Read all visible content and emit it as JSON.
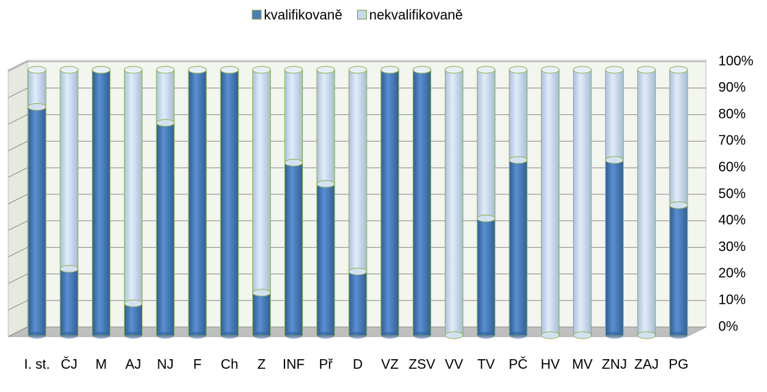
{
  "chart_data": {
    "type": "bar",
    "stacked": true,
    "categories": [
      "I. st.",
      "ČJ",
      "M",
      "AJ",
      "NJ",
      "F",
      "Ch",
      "Z",
      "INF",
      "Př",
      "D",
      "VZ",
      "ZSV",
      "VV",
      "TV",
      "PČ",
      "HV",
      "MV",
      "ZNJ",
      "ZAJ",
      "PG"
    ],
    "series": [
      {
        "name": "kvalifikovaně",
        "color": "#4a7ebb",
        "values": [
          86,
          25,
          100,
          12,
          80,
          100,
          100,
          16,
          65,
          57,
          24,
          100,
          100,
          0,
          44,
          66,
          0,
          0,
          66,
          0,
          49
        ]
      },
      {
        "name": "nekvalifikovaně",
        "color": "#c6d9f1",
        "values": [
          14,
          75,
          0,
          88,
          20,
          0,
          0,
          84,
          35,
          43,
          76,
          0,
          0,
          100,
          56,
          34,
          100,
          100,
          34,
          100,
          51
        ]
      }
    ],
    "ylim": [
      0,
      100
    ],
    "yticks": [
      {
        "value": 0,
        "label": "0%"
      },
      {
        "value": 10,
        "label": "10%"
      },
      {
        "value": 20,
        "label": "20%"
      },
      {
        "value": 30,
        "label": "30%"
      },
      {
        "value": 40,
        "label": "40%"
      },
      {
        "value": 50,
        "label": "50%"
      },
      {
        "value": 60,
        "label": "60%"
      },
      {
        "value": 70,
        "label": "70%"
      },
      {
        "value": 80,
        "label": "80%"
      },
      {
        "value": 90,
        "label": "90%"
      },
      {
        "value": 100,
        "label": "100%"
      }
    ],
    "y_axis_side": "right",
    "grid": true,
    "legend": "top"
  }
}
